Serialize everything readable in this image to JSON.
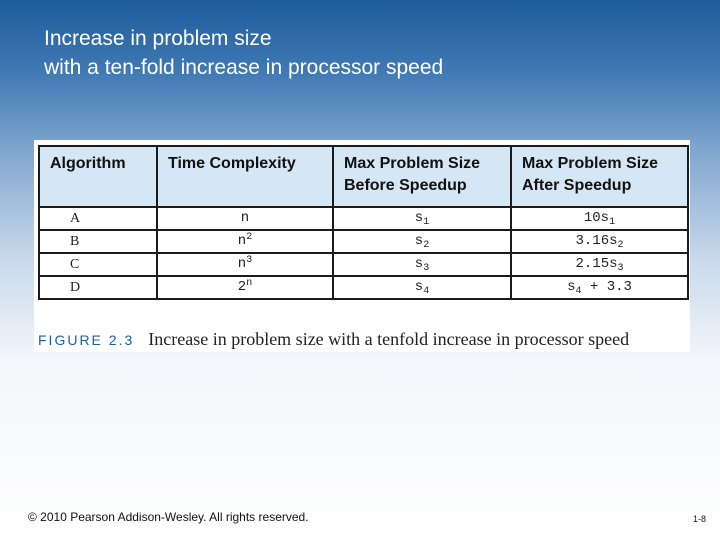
{
  "slide": {
    "title_line1": "Increase in problem size",
    "title_line2": "with a ten-fold increase in processor speed"
  },
  "table": {
    "headers": [
      {
        "line1": "Algorithm",
        "line2": ""
      },
      {
        "line1": "Time Complexity",
        "line2": ""
      },
      {
        "line1": "Max Problem Size",
        "line2": "Before Speedup"
      },
      {
        "line1": "Max Problem Size",
        "line2": "After Speedup"
      }
    ],
    "rows": [
      {
        "algorithm": "A",
        "complexity_base": "n",
        "complexity_exp": "",
        "before_base": "s",
        "before_sub": "1",
        "after_base": "10s",
        "after_sub": "1",
        "after_suffix": ""
      },
      {
        "algorithm": "B",
        "complexity_base": "n",
        "complexity_exp": "2",
        "before_base": "s",
        "before_sub": "2",
        "after_base": "3.16s",
        "after_sub": "2",
        "after_suffix": ""
      },
      {
        "algorithm": "C",
        "complexity_base": "n",
        "complexity_exp": "3",
        "before_base": "s",
        "before_sub": "3",
        "after_base": "2.15s",
        "after_sub": "3",
        "after_suffix": ""
      },
      {
        "algorithm": "D",
        "complexity_base": "2",
        "complexity_exp": "n",
        "before_base": "s",
        "before_sub": "4",
        "after_base": "s",
        "after_sub": "4",
        "after_suffix": " + 3.3"
      }
    ]
  },
  "figure": {
    "label": "FIGURE 2.3",
    "caption": "Increase in problem size with a tenfold increase in processor speed"
  },
  "footer": {
    "copyright": "© 2010 Pearson Addison-Wesley. All rights reserved.",
    "page_number": "1-8"
  },
  "colors": {
    "title_bar": "#1f5c9c",
    "header_fill": "#d5e6f4",
    "figure_label": "#1c5fa6"
  }
}
